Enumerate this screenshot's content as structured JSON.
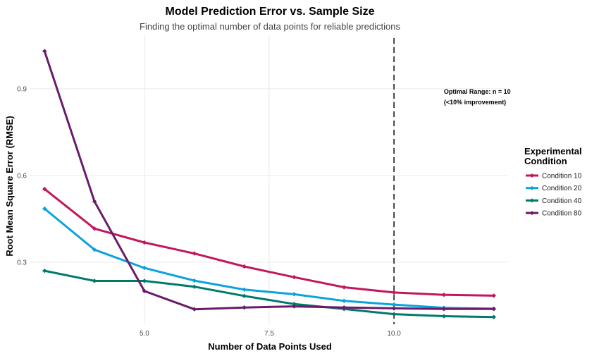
{
  "chart_data": {
    "type": "line",
    "title": "Model Prediction Error vs. Sample Size",
    "subtitle": "Finding the optimal number of data points for reliable predictions",
    "xlabel": "Number of Data Points Used",
    "ylabel": "Root Mean Square Error (RMSE)",
    "xlim": [
      2.7,
      12.3
    ],
    "ylim": [
      0.085,
      1.085
    ],
    "xticks": [
      5.0,
      7.5,
      10.0
    ],
    "xtick_labels": [
      "5.0",
      "7.5",
      "10.0"
    ],
    "yticks": [
      0.3,
      0.6,
      0.9
    ],
    "ytick_labels": [
      "0.3",
      "0.6",
      "0.9"
    ],
    "grid": true,
    "legend": {
      "title_line1": "Experimental",
      "title_line2": "Condition",
      "position": "right"
    },
    "x": [
      3,
      4,
      5,
      6,
      7,
      8,
      9,
      10,
      11,
      12
    ],
    "series": [
      {
        "name": "Condition 10",
        "color": "#c2185b",
        "values": [
          0.553,
          0.416,
          0.368,
          0.33,
          0.285,
          0.248,
          0.213,
          0.195,
          0.187,
          0.184
        ]
      },
      {
        "name": "Condition 20",
        "color": "#0aa3dc",
        "values": [
          0.485,
          0.343,
          0.28,
          0.236,
          0.205,
          0.189,
          0.166,
          0.153,
          0.142,
          0.139
        ]
      },
      {
        "name": "Condition 40",
        "color": "#00796b",
        "values": [
          0.27,
          0.235,
          0.235,
          0.215,
          0.183,
          0.155,
          0.138,
          0.12,
          0.113,
          0.11
        ]
      },
      {
        "name": "Condition 80",
        "color": "#6a1b6a",
        "values": [
          1.03,
          0.51,
          0.2,
          0.137,
          0.143,
          0.147,
          0.143,
          0.14,
          0.138,
          0.138
        ]
      }
    ],
    "reference_line": {
      "x": 10.0,
      "style": "dashed",
      "color": "#333333"
    },
    "annotation": {
      "line1": "Optimal Range: n = 10",
      "line2": "(<10% improvement)",
      "x": 11.0,
      "y": 0.875
    }
  }
}
